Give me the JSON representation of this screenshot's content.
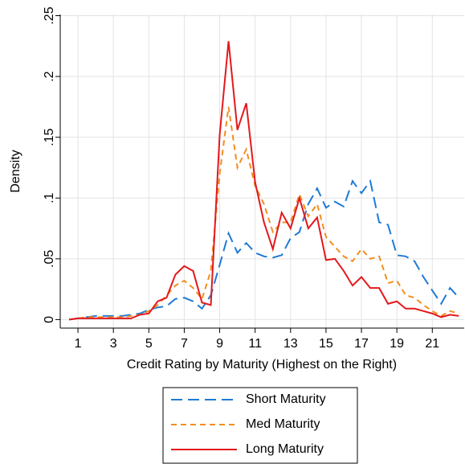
{
  "chart_data": {
    "type": "line",
    "x_label": "Credit Rating by Maturity (Highest on the Right)",
    "y_label": "Density",
    "x": [
      0.5,
      1,
      1.5,
      2,
      2.5,
      3,
      3.5,
      4,
      4.5,
      5,
      5.5,
      6,
      6.5,
      7,
      7.5,
      8,
      8.5,
      9,
      9.5,
      10,
      10.5,
      11,
      11.5,
      12,
      12.5,
      13,
      13.5,
      14,
      14.5,
      15,
      15.5,
      16,
      16.5,
      17,
      17.5,
      18,
      18.5,
      19,
      19.5,
      20,
      20.5,
      21,
      21.5,
      22,
      22.5
    ],
    "series": [
      {
        "name": "Short Maturity",
        "color": "#1f7ad6",
        "dash": "long",
        "values": [
          0,
          0.001,
          0.002,
          0.003,
          0.003,
          0.003,
          0.003,
          0.004,
          0.005,
          0.008,
          0.01,
          0.011,
          0.017,
          0.018,
          0.015,
          0.009,
          0.02,
          0.045,
          0.071,
          0.055,
          0.063,
          0.055,
          0.052,
          0.051,
          0.053,
          0.067,
          0.072,
          0.095,
          0.108,
          0.092,
          0.097,
          0.093,
          0.114,
          0.104,
          0.114,
          0.08,
          0.078,
          0.053,
          0.052,
          0.048,
          0.035,
          0.024,
          0.013,
          0.026,
          0.018
        ]
      },
      {
        "name": "Med Maturity",
        "color": "#f28e1e",
        "dash": "short",
        "values": [
          0,
          0.001,
          0.002,
          0.002,
          0.002,
          0.002,
          0.002,
          0.003,
          0.004,
          0.007,
          0.012,
          0.02,
          0.028,
          0.032,
          0.026,
          0.017,
          0.04,
          0.12,
          0.175,
          0.125,
          0.14,
          0.11,
          0.095,
          0.072,
          0.08,
          0.08,
          0.103,
          0.085,
          0.095,
          0.068,
          0.06,
          0.052,
          0.048,
          0.058,
          0.05,
          0.052,
          0.03,
          0.032,
          0.02,
          0.018,
          0.012,
          0.007,
          0.003,
          0.007,
          0.005
        ]
      },
      {
        "name": "Long Maturity",
        "color": "#e3191c",
        "dash": "solid",
        "values": [
          0,
          0.001,
          0.001,
          0.001,
          0.001,
          0.001,
          0.001,
          0.001,
          0.004,
          0.005,
          0.015,
          0.018,
          0.037,
          0.044,
          0.04,
          0.014,
          0.012,
          0.152,
          0.229,
          0.156,
          0.178,
          0.113,
          0.08,
          0.058,
          0.088,
          0.075,
          0.1,
          0.075,
          0.084,
          0.049,
          0.05,
          0.04,
          0.028,
          0.035,
          0.026,
          0.026,
          0.013,
          0.015,
          0.009,
          0.009,
          0.007,
          0.005,
          0.002,
          0.004,
          0.003
        ]
      }
    ],
    "xlim": [
      0,
      22.8
    ],
    "ylim": [
      -0.007,
      0.251
    ],
    "xticks": [
      1,
      3,
      5,
      7,
      9,
      11,
      13,
      15,
      17,
      19,
      21
    ],
    "yticks": [
      0,
      {
        "value": 0.05,
        "label": ".05"
      },
      {
        "value": 0.1,
        "label": ".1"
      },
      {
        "value": 0.15,
        "label": ".15"
      },
      {
        "value": 0.2,
        "label": ".2"
      },
      {
        "value": 0.25,
        "label": ".25"
      }
    ],
    "grid": true,
    "legend": "bottom"
  }
}
